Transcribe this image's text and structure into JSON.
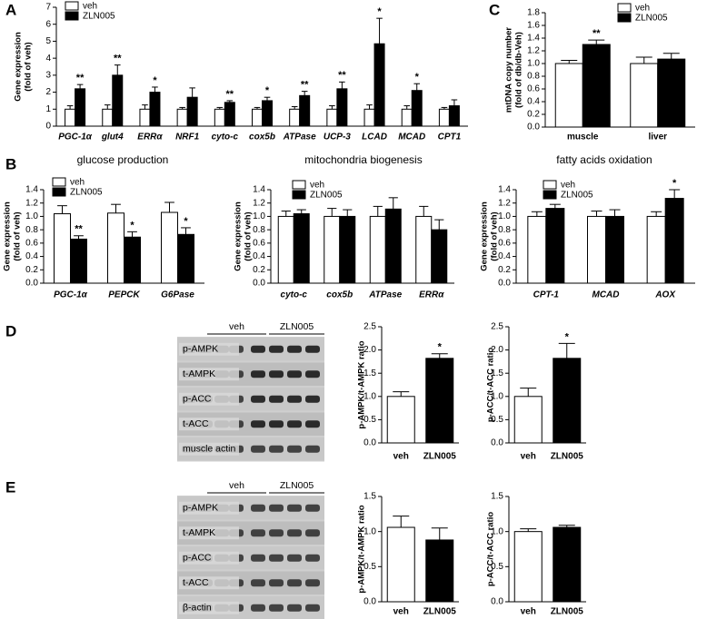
{
  "panel_labels": [
    "A",
    "B",
    "C",
    "D",
    "E"
  ],
  "chart_data": [
    {
      "type": "bar",
      "ylabel": [
        "Gene expression",
        "(fold of veh)"
      ],
      "categories": [
        "PGC-1α",
        "glut4",
        "ERRα",
        "NRF1",
        "cyto-c",
        "cox5b",
        "ATPase",
        "UCP-3",
        "LCAD",
        "MCAD",
        "CPT1"
      ],
      "series": [
        {
          "name": "veh",
          "color": "#ffffff",
          "values": [
            1.0,
            1.0,
            1.0,
            1.0,
            1.0,
            1.0,
            1.0,
            1.0,
            1.0,
            1.0,
            1.0
          ],
          "errors": [
            0.2,
            0.25,
            0.25,
            0.1,
            0.1,
            0.1,
            0.15,
            0.2,
            0.25,
            0.2,
            0.1
          ]
        },
        {
          "name": "ZLN005",
          "color": "#000000",
          "values": [
            2.2,
            3.0,
            2.0,
            1.7,
            1.4,
            1.5,
            1.8,
            2.2,
            4.85,
            2.1,
            1.2
          ],
          "errors": [
            0.25,
            0.6,
            0.3,
            0.55,
            0.1,
            0.2,
            0.25,
            0.4,
            1.5,
            0.4,
            0.35
          ],
          "significance": [
            "**",
            "**",
            "*",
            null,
            "**",
            "*",
            "**",
            "**",
            "*",
            "*",
            null
          ]
        }
      ],
      "ylim": [
        0,
        7
      ],
      "yticks": [
        0,
        1,
        2,
        3,
        4,
        5,
        6,
        7
      ]
    },
    {
      "type": "bar",
      "ylabel": [
        "mtDNA copy number",
        "(fold of db/db-Veh)"
      ],
      "categories": [
        "muscle",
        "liver"
      ],
      "series": [
        {
          "name": "veh",
          "color": "#ffffff",
          "values": [
            1.0,
            1.0
          ],
          "errors": [
            0.05,
            0.1
          ]
        },
        {
          "name": "ZLN005",
          "color": "#000000",
          "values": [
            1.3,
            1.07
          ],
          "errors": [
            0.07,
            0.09
          ],
          "significance": [
            "**",
            null
          ]
        }
      ],
      "ylim": [
        0,
        1.8
      ],
      "yticks": [
        {
          "value": 0,
          "label": "0.0"
        },
        0.2,
        0.4,
        0.6,
        0.8,
        {
          "value": 1,
          "label": "1.0"
        },
        1.2,
        1.4,
        1.6,
        1.8
      ]
    },
    {
      "type": "bar",
      "title": "glucose production",
      "ylabel": [
        "Gene expression",
        "(fold of veh)"
      ],
      "categories": [
        "PGC-1α",
        "PEPCK",
        "G6Pase"
      ],
      "series": [
        {
          "name": "veh",
          "color": "#ffffff",
          "values": [
            1.04,
            1.05,
            1.06
          ],
          "errors": [
            0.12,
            0.13,
            0.15
          ]
        },
        {
          "name": "ZLN005",
          "color": "#000000",
          "values": [
            0.66,
            0.69,
            0.73
          ],
          "errors": [
            0.05,
            0.08,
            0.1
          ],
          "significance": [
            "**",
            "*",
            "*"
          ]
        }
      ],
      "ylim": [
        0,
        1.4
      ],
      "yticks": [
        {
          "value": 0,
          "label": "0.0"
        },
        0.2,
        0.4,
        0.6,
        0.8,
        {
          "value": 1,
          "label": "1.0"
        },
        1.2,
        1.4
      ]
    },
    {
      "type": "bar",
      "title": "mitochondria biogenesis",
      "ylabel": [
        "Gene expression",
        "(fold of veh)"
      ],
      "categories": [
        "cyto-c",
        "cox5b",
        "ATPase",
        "ERRα"
      ],
      "series": [
        {
          "name": "veh",
          "color": "#ffffff",
          "values": [
            1.0,
            1.0,
            1.0,
            1.0
          ],
          "errors": [
            0.08,
            0.12,
            0.15,
            0.15
          ]
        },
        {
          "name": "ZLN005",
          "color": "#000000",
          "values": [
            1.04,
            1.0,
            1.11,
            0.8
          ],
          "errors": [
            0.06,
            0.1,
            0.17,
            0.15
          ]
        }
      ],
      "ylim": [
        0,
        1.4
      ],
      "yticks": [
        {
          "value": 0,
          "label": "0.0"
        },
        0.2,
        0.4,
        0.6,
        0.8,
        {
          "value": 1,
          "label": "1.0"
        },
        1.2,
        1.4
      ]
    },
    {
      "type": "bar",
      "title": "fatty acids oxidation",
      "ylabel": [
        "Gene expression",
        "(fold of veh)"
      ],
      "categories": [
        "CPT-1",
        "MCAD",
        "AOX"
      ],
      "series": [
        {
          "name": "veh",
          "color": "#ffffff",
          "values": [
            1.0,
            1.0,
            1.0
          ],
          "errors": [
            0.07,
            0.08,
            0.07
          ]
        },
        {
          "name": "ZLN005",
          "color": "#000000",
          "values": [
            1.12,
            1.0,
            1.27
          ],
          "errors": [
            0.06,
            0.1,
            0.13
          ],
          "significance": [
            null,
            null,
            "*"
          ]
        }
      ],
      "ylim": [
        0,
        1.4
      ],
      "yticks": [
        {
          "value": 0,
          "label": "0.0"
        },
        0.2,
        0.4,
        0.6,
        0.8,
        {
          "value": 1,
          "label": "1.0"
        },
        1.2,
        1.4
      ]
    },
    {
      "type": "bar",
      "ylabel": [
        "p-AMPK/t-AMPK ratio"
      ],
      "categories": [
        "veh",
        "ZLN005"
      ],
      "values": [
        1.0,
        1.82
      ],
      "errors": [
        0.1,
        0.1
      ],
      "colors": [
        "#ffffff",
        "#000000"
      ],
      "significance": [
        null,
        "*"
      ],
      "ylim": [
        0,
        2.5
      ],
      "yticks": [
        {
          "value": 0,
          "label": "0.0"
        },
        0.5,
        {
          "value": 1,
          "label": "1.0"
        },
        1.5,
        {
          "value": 2,
          "label": "2.0"
        },
        2.5
      ]
    },
    {
      "type": "bar",
      "ylabel": [
        "p-ACC/t-ACC ratio"
      ],
      "categories": [
        "veh",
        "ZLN005"
      ],
      "values": [
        1.0,
        1.82
      ],
      "errors": [
        0.18,
        0.32
      ],
      "colors": [
        "#ffffff",
        "#000000"
      ],
      "significance": [
        null,
        "*"
      ],
      "ylim": [
        0,
        2.5
      ],
      "yticks": [
        {
          "value": 0,
          "label": "0.0"
        },
        0.5,
        {
          "value": 1,
          "label": "1.0"
        },
        1.5,
        {
          "value": 2,
          "label": "2.0"
        },
        2.5
      ]
    },
    {
      "type": "bar",
      "ylabel": [
        "p-AMPK/t-AMPK ratio"
      ],
      "categories": [
        "veh",
        "ZLN005"
      ],
      "values": [
        1.06,
        0.88
      ],
      "errors": [
        0.16,
        0.17
      ],
      "colors": [
        "#ffffff",
        "#000000"
      ],
      "ylim": [
        0,
        1.5
      ],
      "yticks": [
        {
          "value": 0,
          "label": "0.0"
        },
        0.5,
        {
          "value": 1,
          "label": "1.0"
        },
        1.5
      ]
    },
    {
      "type": "bar",
      "ylabel": [
        "p-ACC/t-ACC ratio"
      ],
      "categories": [
        "veh",
        "ZLN005"
      ],
      "values": [
        1.0,
        1.06
      ],
      "errors": [
        0.04,
        0.03
      ],
      "colors": [
        "#ffffff",
        "#000000"
      ],
      "ylim": [
        0,
        1.5
      ],
      "yticks": [
        {
          "value": 0,
          "label": "0.0"
        },
        0.5,
        {
          "value": 1,
          "label": "1.0"
        },
        1.5
      ]
    }
  ],
  "blots": [
    {
      "groups": [
        "veh",
        "ZLN005"
      ],
      "rows": [
        "p-AMPK",
        "t-AMPK",
        "p-ACC",
        "t-ACC",
        "muscle actin"
      ]
    },
    {
      "groups": [
        "veh",
        "ZLN005"
      ],
      "rows": [
        "p-AMPK",
        "t-AMPK",
        "p-ACC",
        "t-ACC",
        "β-actin"
      ]
    }
  ]
}
